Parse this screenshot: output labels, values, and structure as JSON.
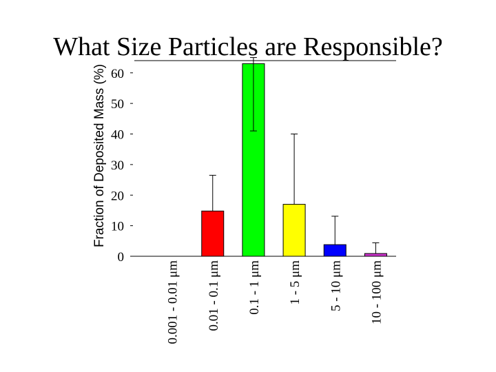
{
  "slide": {
    "title": "What Size Particles are Responsible?"
  },
  "chart_data": {
    "type": "bar",
    "ylabel": "Fraction of Deposited Mass (%)",
    "xlabel": "",
    "ylim": [
      0,
      64
    ],
    "yticks": [
      0,
      10,
      20,
      30,
      40,
      50,
      60
    ],
    "grid": false,
    "legend": "none",
    "categories": [
      "0.001 - 0.01 μm",
      "0.01 - 0.1 μm",
      "0.1 - 1 μm",
      "1 - 5 μm",
      "5 - 10 μm",
      "10 - 100 μm"
    ],
    "values": [
      0,
      14.8,
      63,
      17,
      3.8,
      0.9
    ],
    "error_upper": [
      0,
      26.5,
      65,
      40,
      13.1,
      4.4
    ],
    "error_lower": [
      0,
      14.8,
      41,
      17,
      3.8,
      0.9
    ],
    "colors": [
      "#ffffff",
      "#ff0000",
      "#00ff00",
      "#ffff00",
      "#0000ff",
      "#cc33cc"
    ]
  }
}
